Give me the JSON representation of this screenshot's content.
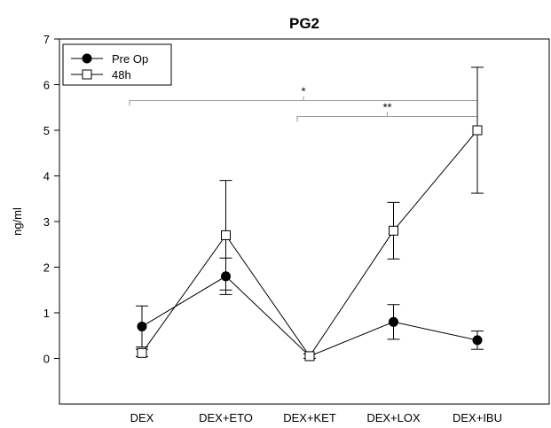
{
  "chart_data": {
    "type": "line",
    "title": "PG2",
    "xlabel": "",
    "ylabel": "ng/ml",
    "categories": [
      "DEX",
      "DEX+ETO",
      "DEX+KET",
      "DEX+LOX",
      "DEX+IBU"
    ],
    "ylim": [
      -1,
      7
    ],
    "yticks": [
      "0",
      "1",
      "2",
      "3",
      "4",
      "5",
      "6",
      "7"
    ],
    "grid": false,
    "legend_position": "top-left",
    "series": [
      {
        "name": "Pre Op",
        "marker": "filled-circle",
        "color": "#000000",
        "values": [
          0.7,
          1.8,
          0.05,
          0.8,
          0.4
        ],
        "error": [
          0.45,
          0.4,
          0.05,
          0.38,
          0.2
        ]
      },
      {
        "name": "48h",
        "marker": "open-square",
        "color": "#000000",
        "values": [
          0.12,
          2.7,
          0.05,
          2.8,
          5.0
        ],
        "error": [
          0.08,
          1.2,
          0.05,
          0.62,
          1.38
        ]
      }
    ],
    "annotations": [
      {
        "label": "*",
        "from": "DEX",
        "to": "DEX+IBU",
        "y": 5.65,
        "color": "#999999"
      },
      {
        "label": "**",
        "from": "DEX+KET",
        "to": "DEX+IBU",
        "y": 5.3,
        "color": "#999999"
      }
    ]
  }
}
